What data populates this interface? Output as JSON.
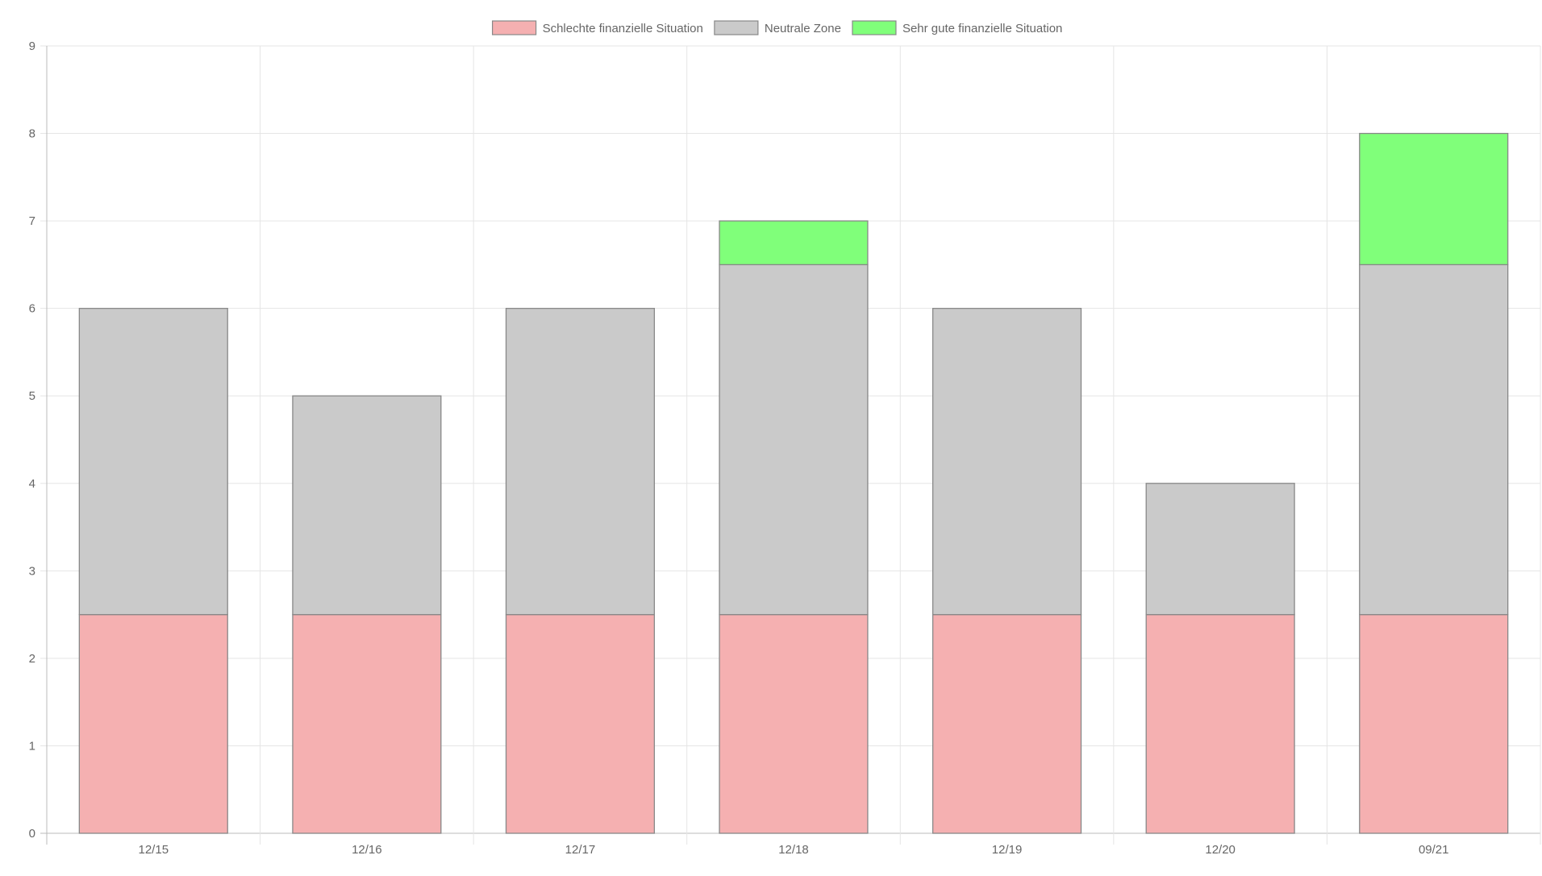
{
  "chart_data": {
    "type": "bar",
    "stacked": true,
    "categories": [
      "12/15",
      "12/16",
      "12/17",
      "12/18",
      "12/19",
      "12/20",
      "09/21"
    ],
    "series": [
      {
        "name": "Schlechte finanzielle Situation",
        "color": "#f5b0b1",
        "values": [
          2.5,
          2.5,
          2.5,
          2.5,
          2.5,
          2.5,
          2.5
        ]
      },
      {
        "name": "Neutrale Zone",
        "color": "#cacaca",
        "values": [
          3.5,
          2.5,
          3.5,
          4,
          3.5,
          1.5,
          4
        ]
      },
      {
        "name": "Sehr gute finanzielle Situation",
        "color": "#80ff7a",
        "values": [
          0,
          0,
          0,
          0.5,
          0,
          0,
          1.5
        ]
      }
    ],
    "ylim": [
      0,
      9
    ],
    "yticks": [
      "0",
      "1",
      "2",
      "3",
      "4",
      "5",
      "6",
      "7",
      "8",
      "9"
    ],
    "grid": true,
    "legend_position": "top",
    "bar_border_color": "#888888",
    "grid_color": "#e5e5e5",
    "axis_color": "#bbbbbb"
  }
}
